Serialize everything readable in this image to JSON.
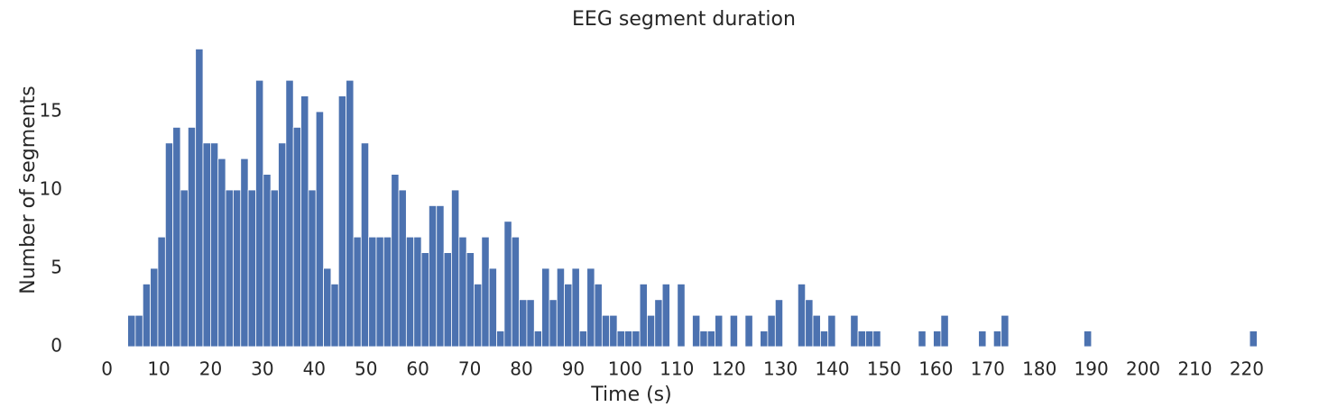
{
  "chart_data": {
    "type": "histogram",
    "title": "EEG segment duration",
    "xlabel": "Time (s)",
    "ylabel": "Number of segments",
    "color": "#4c72b0",
    "bins": [
      4.0,
      5.45,
      6.91,
      8.36,
      9.81,
      11.27,
      12.72,
      14.17,
      15.63,
      17.08,
      18.53,
      19.99,
      21.44,
      22.89,
      24.35,
      25.8,
      27.25,
      28.71,
      30.16,
      31.61,
      33.07,
      34.52,
      35.97,
      37.43,
      38.88,
      40.33,
      41.79,
      43.24,
      44.69,
      46.15,
      47.6,
      49.05,
      50.51,
      51.96,
      53.41,
      54.87,
      56.32,
      57.77,
      59.23,
      60.68,
      62.13,
      63.59,
      65.04,
      66.49,
      67.95,
      69.4,
      70.85,
      72.31,
      73.76,
      75.21,
      76.67,
      78.12,
      79.57,
      81.03,
      82.48,
      83.93,
      85.39,
      86.84,
      88.29,
      89.75,
      91.2,
      92.65,
      94.11,
      95.56,
      97.01,
      98.47,
      99.92,
      101.37,
      102.83,
      104.28,
      105.73,
      107.19,
      108.64,
      110.09,
      111.55,
      113.0,
      114.45,
      115.91,
      117.36,
      118.81,
      120.27,
      121.72,
      123.17,
      124.63,
      126.08,
      127.53,
      128.99,
      130.44,
      131.89,
      133.35,
      134.8,
      136.25,
      137.71,
      139.16,
      140.61,
      142.07,
      143.52,
      144.97,
      146.43,
      147.88,
      149.33,
      150.79,
      152.24,
      153.69,
      155.15,
      156.6,
      158.05,
      159.51,
      160.96,
      162.41,
      163.87,
      165.32,
      166.77,
      168.23,
      169.68,
      171.13,
      172.59,
      174.04,
      175.49,
      176.95,
      178.4,
      179.85,
      181.31,
      182.76,
      184.21,
      185.67,
      187.12,
      188.57,
      190.03,
      191.48,
      192.93,
      194.39,
      195.84,
      197.29,
      198.75,
      200.2,
      201.65,
      203.11,
      204.56,
      206.01,
      207.47,
      208.92,
      210.37,
      211.83,
      213.28,
      214.73,
      216.19,
      217.64,
      219.09,
      220.55,
      222.0
    ],
    "values": [
      2,
      2,
      4,
      5,
      7,
      13,
      14,
      10,
      14,
      19,
      13,
      13,
      12,
      10,
      10,
      12,
      10,
      17,
      11,
      10,
      13,
      17,
      14,
      16,
      10,
      15,
      5,
      4,
      16,
      17,
      7,
      13,
      7,
      7,
      7,
      11,
      10,
      7,
      7,
      6,
      9,
      9,
      6,
      10,
      7,
      6,
      4,
      7,
      5,
      1,
      8,
      7,
      3,
      3,
      1,
      5,
      3,
      5,
      4,
      5,
      1,
      5,
      4,
      2,
      2,
      1,
      1,
      1,
      4,
      2,
      3,
      4,
      0,
      4,
      0,
      2,
      1,
      1,
      2,
      0,
      2,
      0,
      2,
      0,
      1,
      2,
      3,
      0,
      0,
      4,
      3,
      2,
      1,
      2,
      0,
      0,
      2,
      1,
      1,
      1,
      0,
      0,
      0,
      0,
      0,
      1,
      0,
      1,
      2,
      0,
      0,
      0,
      0,
      1,
      0,
      1,
      2,
      0,
      0,
      0,
      0,
      0,
      0,
      0,
      0,
      0,
      0,
      1,
      0,
      0,
      0,
      0,
      0,
      0,
      0,
      0,
      0,
      0,
      0,
      0,
      0,
      0,
      0,
      0,
      0,
      0,
      0,
      0,
      0,
      1
    ],
    "xlim": [
      -6.9,
      232.9
    ],
    "xticks": [
      0,
      10,
      20,
      30,
      40,
      50,
      60,
      70,
      80,
      90,
      100,
      110,
      120,
      130,
      140,
      150,
      160,
      170,
      180,
      190,
      200,
      210,
      220
    ],
    "ylim": [
      0,
      20
    ],
    "yticks": [
      0,
      5,
      10,
      15
    ],
    "grid": false
  }
}
